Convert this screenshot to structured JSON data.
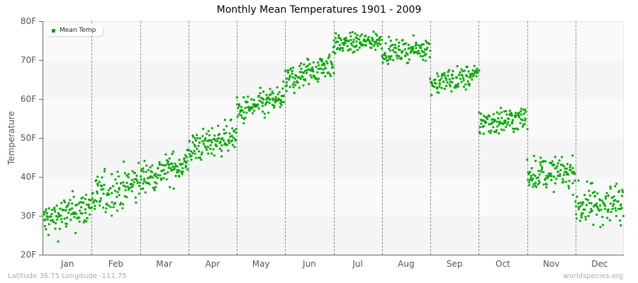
{
  "chart_data": {
    "type": "scatter",
    "title": "Monthly Mean Temperatures 1901 - 2009",
    "xlabel": "",
    "ylabel": "Temperature",
    "ylim": [
      20,
      80
    ],
    "yticks": [
      "20F",
      "30F",
      "40F",
      "50F",
      "60F",
      "70F",
      "80F"
    ],
    "categories": [
      "Jan",
      "Feb",
      "Mar",
      "Apr",
      "May",
      "Jun",
      "Jul",
      "Aug",
      "Sep",
      "Oct",
      "Nov",
      "Dec"
    ],
    "grid": "alternating horizontal bands; dashed vertical month dividers",
    "legend": {
      "position": "top-left",
      "entries": [
        "Mean Temp"
      ]
    },
    "points_per_month": 109,
    "series": [
      {
        "name": "Mean Temp",
        "color": "#00aa00",
        "month_stats": [
          {
            "month": "Jan",
            "mean": 30.5,
            "min": 20,
            "max": 36.5,
            "trend": 4
          },
          {
            "month": "Feb",
            "mean": 36.5,
            "min": 25.5,
            "max": 44.5,
            "trend": 4
          },
          {
            "month": "Mar",
            "mean": 41.5,
            "min": 36,
            "max": 50,
            "trend": 4
          },
          {
            "month": "Apr",
            "mean": 49,
            "min": 43,
            "max": 56.5,
            "trend": 4
          },
          {
            "month": "May",
            "mean": 58.5,
            "min": 52,
            "max": 64.5,
            "trend": 4
          },
          {
            "month": "Jun",
            "mean": 67,
            "min": 60.5,
            "max": 73.5,
            "trend": 5
          },
          {
            "month": "Jul",
            "mean": 74.5,
            "min": 70.5,
            "max": 79,
            "trend": 1
          },
          {
            "month": "Aug",
            "mean": 72.5,
            "min": 67.5,
            "max": 76.5,
            "trend": 1
          },
          {
            "month": "Sep",
            "mean": 65,
            "min": 59.5,
            "max": 70,
            "trend": 2
          },
          {
            "month": "Oct",
            "mean": 54.5,
            "min": 48,
            "max": 60,
            "trend": 1
          },
          {
            "month": "Nov",
            "mean": 41,
            "min": 34,
            "max": 48,
            "trend": 0
          },
          {
            "month": "Dec",
            "mean": 33,
            "min": 22,
            "max": 40.5,
            "trend": 1
          }
        ]
      }
    ]
  },
  "colors": {
    "point": "#00aa00",
    "band_dark": "#f5f5f5",
    "band_light": "#fafafa",
    "axis": "#666666",
    "divider": "#888888"
  },
  "footer": {
    "location": "Latitude 36.75 Longitude -111.75",
    "source": "worldspecies.org"
  }
}
